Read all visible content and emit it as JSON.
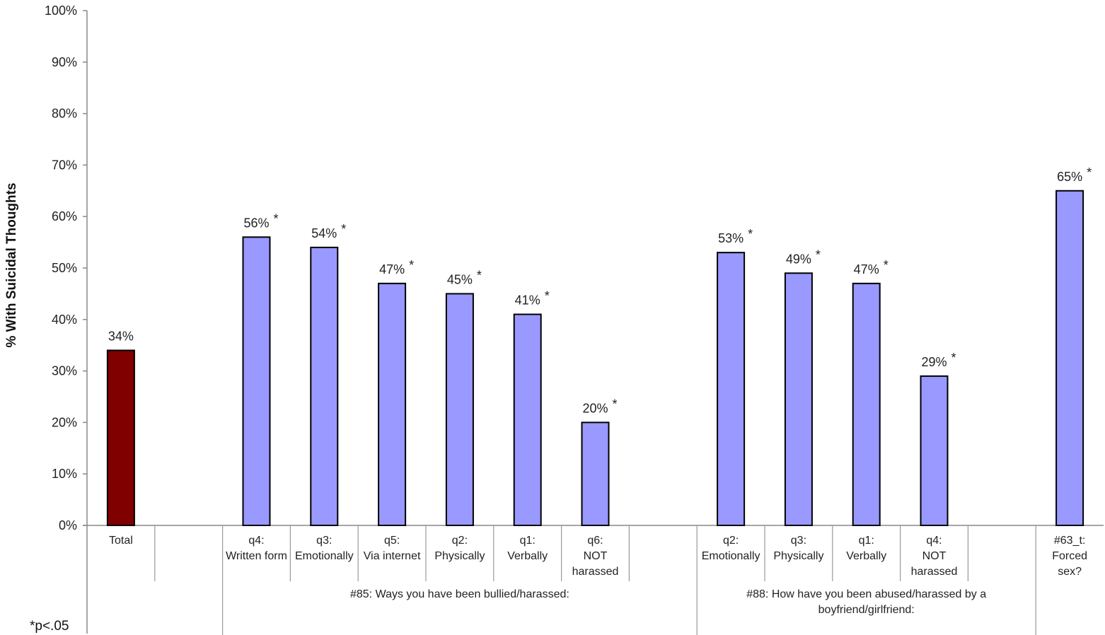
{
  "chart_data": {
    "type": "bar",
    "ylabel": "% With Suicidal Thoughts",
    "ylim": [
      0,
      100
    ],
    "y_ticks": [
      "0%",
      "10%",
      "20%",
      "30%",
      "40%",
      "50%",
      "60%",
      "70%",
      "80%",
      "90%",
      "100%"
    ],
    "grid": false,
    "legend": "none",
    "footnote": "*p<.05",
    "colors": {
      "total": "#800000",
      "other": "#9999ff",
      "outline": "#000000"
    },
    "bars": [
      {
        "category": [
          "Total"
        ],
        "value": 34,
        "label": "34%",
        "star": false,
        "group": null
      },
      {
        "category": [
          "q4:",
          "Written form"
        ],
        "value": 56,
        "label": "56%",
        "star": true,
        "group": 0
      },
      {
        "category": [
          "q3:",
          "Emotionally"
        ],
        "value": 54,
        "label": "54%",
        "star": true,
        "group": 0
      },
      {
        "category": [
          "q5:",
          "Via internet"
        ],
        "value": 47,
        "label": "47%",
        "star": true,
        "group": 0
      },
      {
        "category": [
          "q2:",
          "Physically"
        ],
        "value": 45,
        "label": "45%",
        "star": true,
        "group": 0
      },
      {
        "category": [
          "q1:",
          "Verbally"
        ],
        "value": 41,
        "label": "41%",
        "star": true,
        "group": 0
      },
      {
        "category": [
          "q6:",
          "NOT",
          "harassed"
        ],
        "value": 20,
        "label": "20%",
        "star": true,
        "group": 0
      },
      {
        "category": [
          "q2:",
          "Emotionally"
        ],
        "value": 53,
        "label": "53%",
        "star": true,
        "group": 1
      },
      {
        "category": [
          "q3:",
          "Physically"
        ],
        "value": 49,
        "label": "49%",
        "star": true,
        "group": 1
      },
      {
        "category": [
          "q1:",
          "Verbally"
        ],
        "value": 47,
        "label": "47%",
        "star": true,
        "group": 1
      },
      {
        "category": [
          "q4:",
          "NOT",
          "harassed"
        ],
        "value": 29,
        "label": "29%",
        "star": true,
        "group": 1
      },
      {
        "category": [
          "#63_t:",
          "Forced",
          "sex?"
        ],
        "value": 65,
        "label": "65%",
        "star": true,
        "group": 2
      }
    ],
    "groups": [
      {
        "label": [
          "#85: Ways you have been bullied/harassed:"
        ]
      },
      {
        "label": [
          "#88: How have you been abused/harassed by a",
          "boyfriend/girlfriend:"
        ]
      },
      {
        "label": []
      }
    ]
  }
}
